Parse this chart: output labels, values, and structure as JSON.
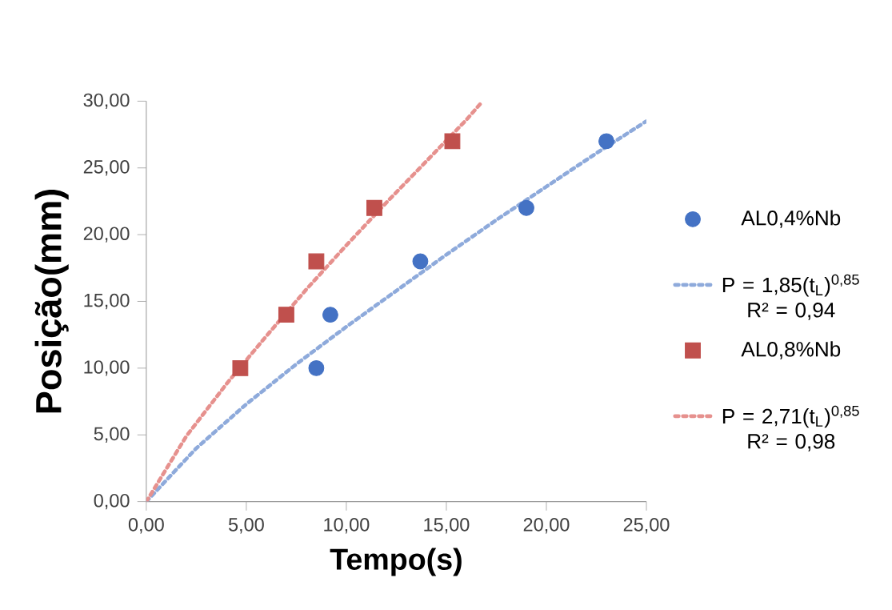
{
  "chart_data": {
    "type": "scatter",
    "xlabel": "Tempo(s)",
    "ylabel": "Posição(mm)",
    "xlim": [
      0,
      25
    ],
    "ylim": [
      0,
      30
    ],
    "xticks": [
      {
        "value": 0,
        "label": "0,00"
      },
      {
        "value": 5,
        "label": "5,00"
      },
      {
        "value": 10,
        "label": "10,00"
      },
      {
        "value": 15,
        "label": "15,00"
      },
      {
        "value": 20,
        "label": "20,00"
      },
      {
        "value": 25,
        "label": "25,00"
      }
    ],
    "yticks": [
      {
        "value": 0,
        "label": "0,00"
      },
      {
        "value": 5,
        "label": "5,00"
      },
      {
        "value": 10,
        "label": "10,00"
      },
      {
        "value": 15,
        "label": "15,00"
      },
      {
        "value": 20,
        "label": "20,00"
      },
      {
        "value": 25,
        "label": "25,00"
      },
      {
        "value": 30,
        "label": "30,00"
      }
    ],
    "grid": false,
    "legend": "right",
    "series": [
      {
        "name": "AL0,4%Nb",
        "marker": "circle",
        "color": "#4472c4",
        "x": [
          8.5,
          9.2,
          13.7,
          19.0,
          23.0
        ],
        "values": [
          10,
          14,
          18,
          22,
          27
        ]
      },
      {
        "name": "P = 1,85(t$_{L}$)$^{0,85}$ R² = 0,94",
        "type": "line",
        "line_style": "dotted",
        "color": "#8eaadb",
        "x": [
          0,
          2.5,
          5,
          7.5,
          10,
          12.5,
          15,
          17.5,
          20,
          22.5,
          25
        ],
        "values": [
          0,
          4.0,
          7.3,
          10.3,
          13.1,
          15.8,
          18.5,
          21.1,
          23.6,
          26.1,
          28.5
        ]
      },
      {
        "name": "AL0,8%Nb",
        "marker": "square",
        "color": "#c0504d",
        "x": [
          4.7,
          7.0,
          8.5,
          11.4,
          15.3
        ],
        "values": [
          10,
          14,
          18,
          22,
          27
        ]
      },
      {
        "name": "P = 2,71(t$_{L}$)$^{0,85}$ R² = 0,98",
        "type": "line",
        "line_style": "dotted",
        "color": "#e6918e",
        "x": [
          0,
          2,
          4,
          6,
          8,
          10,
          12,
          14,
          16,
          16.7
        ],
        "values": [
          0,
          4.9,
          8.8,
          12.4,
          15.9,
          19.2,
          22.4,
          25.5,
          28.6,
          29.8
        ]
      }
    ]
  }
}
